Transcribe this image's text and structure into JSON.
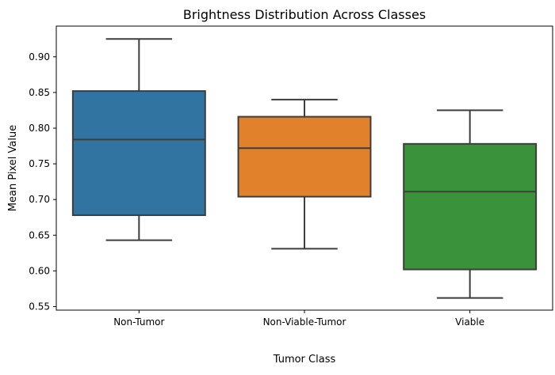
{
  "chart_data": {
    "type": "box",
    "title": "Brightness Distribution Across Classes",
    "xlabel": "Tumor Class",
    "ylabel": "Mean Pixel Value",
    "ylim": [
      0.545,
      0.943
    ],
    "yticks": [
      0.55,
      0.6,
      0.65,
      0.7,
      0.75,
      0.8,
      0.85,
      0.9
    ],
    "ytick_labels": [
      "0.55",
      "0.60",
      "0.65",
      "0.70",
      "0.75",
      "0.80",
      "0.85",
      "0.90"
    ],
    "grid": false,
    "categories": [
      "Non-Tumor",
      "Non-Viable-Tumor",
      "Viable"
    ],
    "boxes": [
      {
        "category": "Non-Tumor",
        "whisker_low": 0.643,
        "q1": 0.678,
        "median": 0.784,
        "q3": 0.852,
        "whisker_high": 0.925,
        "color": "#3274a1"
      },
      {
        "category": "Non-Viable-Tumor",
        "whisker_low": 0.631,
        "q1": 0.704,
        "median": 0.772,
        "q3": 0.816,
        "whisker_high": 0.84,
        "color": "#e1812c"
      },
      {
        "category": "Viable",
        "whisker_low": 0.562,
        "q1": 0.602,
        "median": 0.711,
        "q3": 0.778,
        "whisker_high": 0.825,
        "color": "#3a923a"
      }
    ],
    "line_color": "#3d3d3d"
  }
}
